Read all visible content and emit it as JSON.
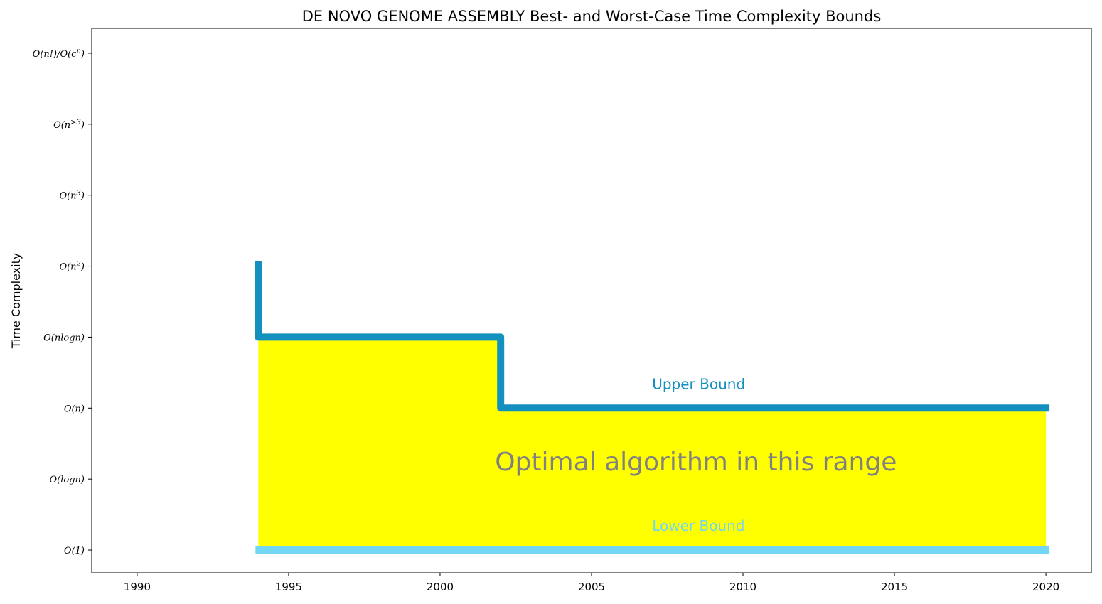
{
  "chart_data": {
    "type": "line",
    "title": "DE NOVO GENOME ASSEMBLY Best- and Worst-Case Time Complexity Bounds",
    "xlabel": "",
    "ylabel": "Time Complexity",
    "xlim": [
      1988.5,
      2021.5
    ],
    "ylim": [
      -0.32,
      7.35
    ],
    "xticks": [
      1990,
      1995,
      2000,
      2005,
      2010,
      2015,
      2020
    ],
    "ytick_labels": [
      "O(1)",
      "O(logn)",
      "O(n)",
      "O(nlogn)",
      "O(n^2)",
      "O(n^3)",
      "O(n^>3)",
      "O(n!)/O(c^n)"
    ],
    "series": [
      {
        "name": "Upper Bound",
        "color": "#1490be",
        "step": "post",
        "x": [
          1994,
          1994,
          2002,
          2020
        ],
        "y": [
          4.07,
          3,
          2,
          2
        ]
      },
      {
        "name": "Lower Bound",
        "color": "#73d6f5",
        "x": [
          1994,
          2020
        ],
        "y": [
          0,
          0
        ]
      }
    ],
    "fill": {
      "color": "#ffff00",
      "between": [
        "Lower Bound",
        "Upper Bound"
      ],
      "x_range": [
        1994,
        2020
      ]
    },
    "annotations": [
      {
        "text": "Upper Bound",
        "x": 2007,
        "y": 2.27,
        "color": "#1490be"
      },
      {
        "text": "Lower Bound",
        "x": 2007,
        "y": 0.27,
        "color": "#73d6f5"
      },
      {
        "text": "Optimal algorithm in this range",
        "x": 2007,
        "y": 1.12,
        "color": "#808080"
      }
    ],
    "grid": false,
    "legend": "none"
  }
}
